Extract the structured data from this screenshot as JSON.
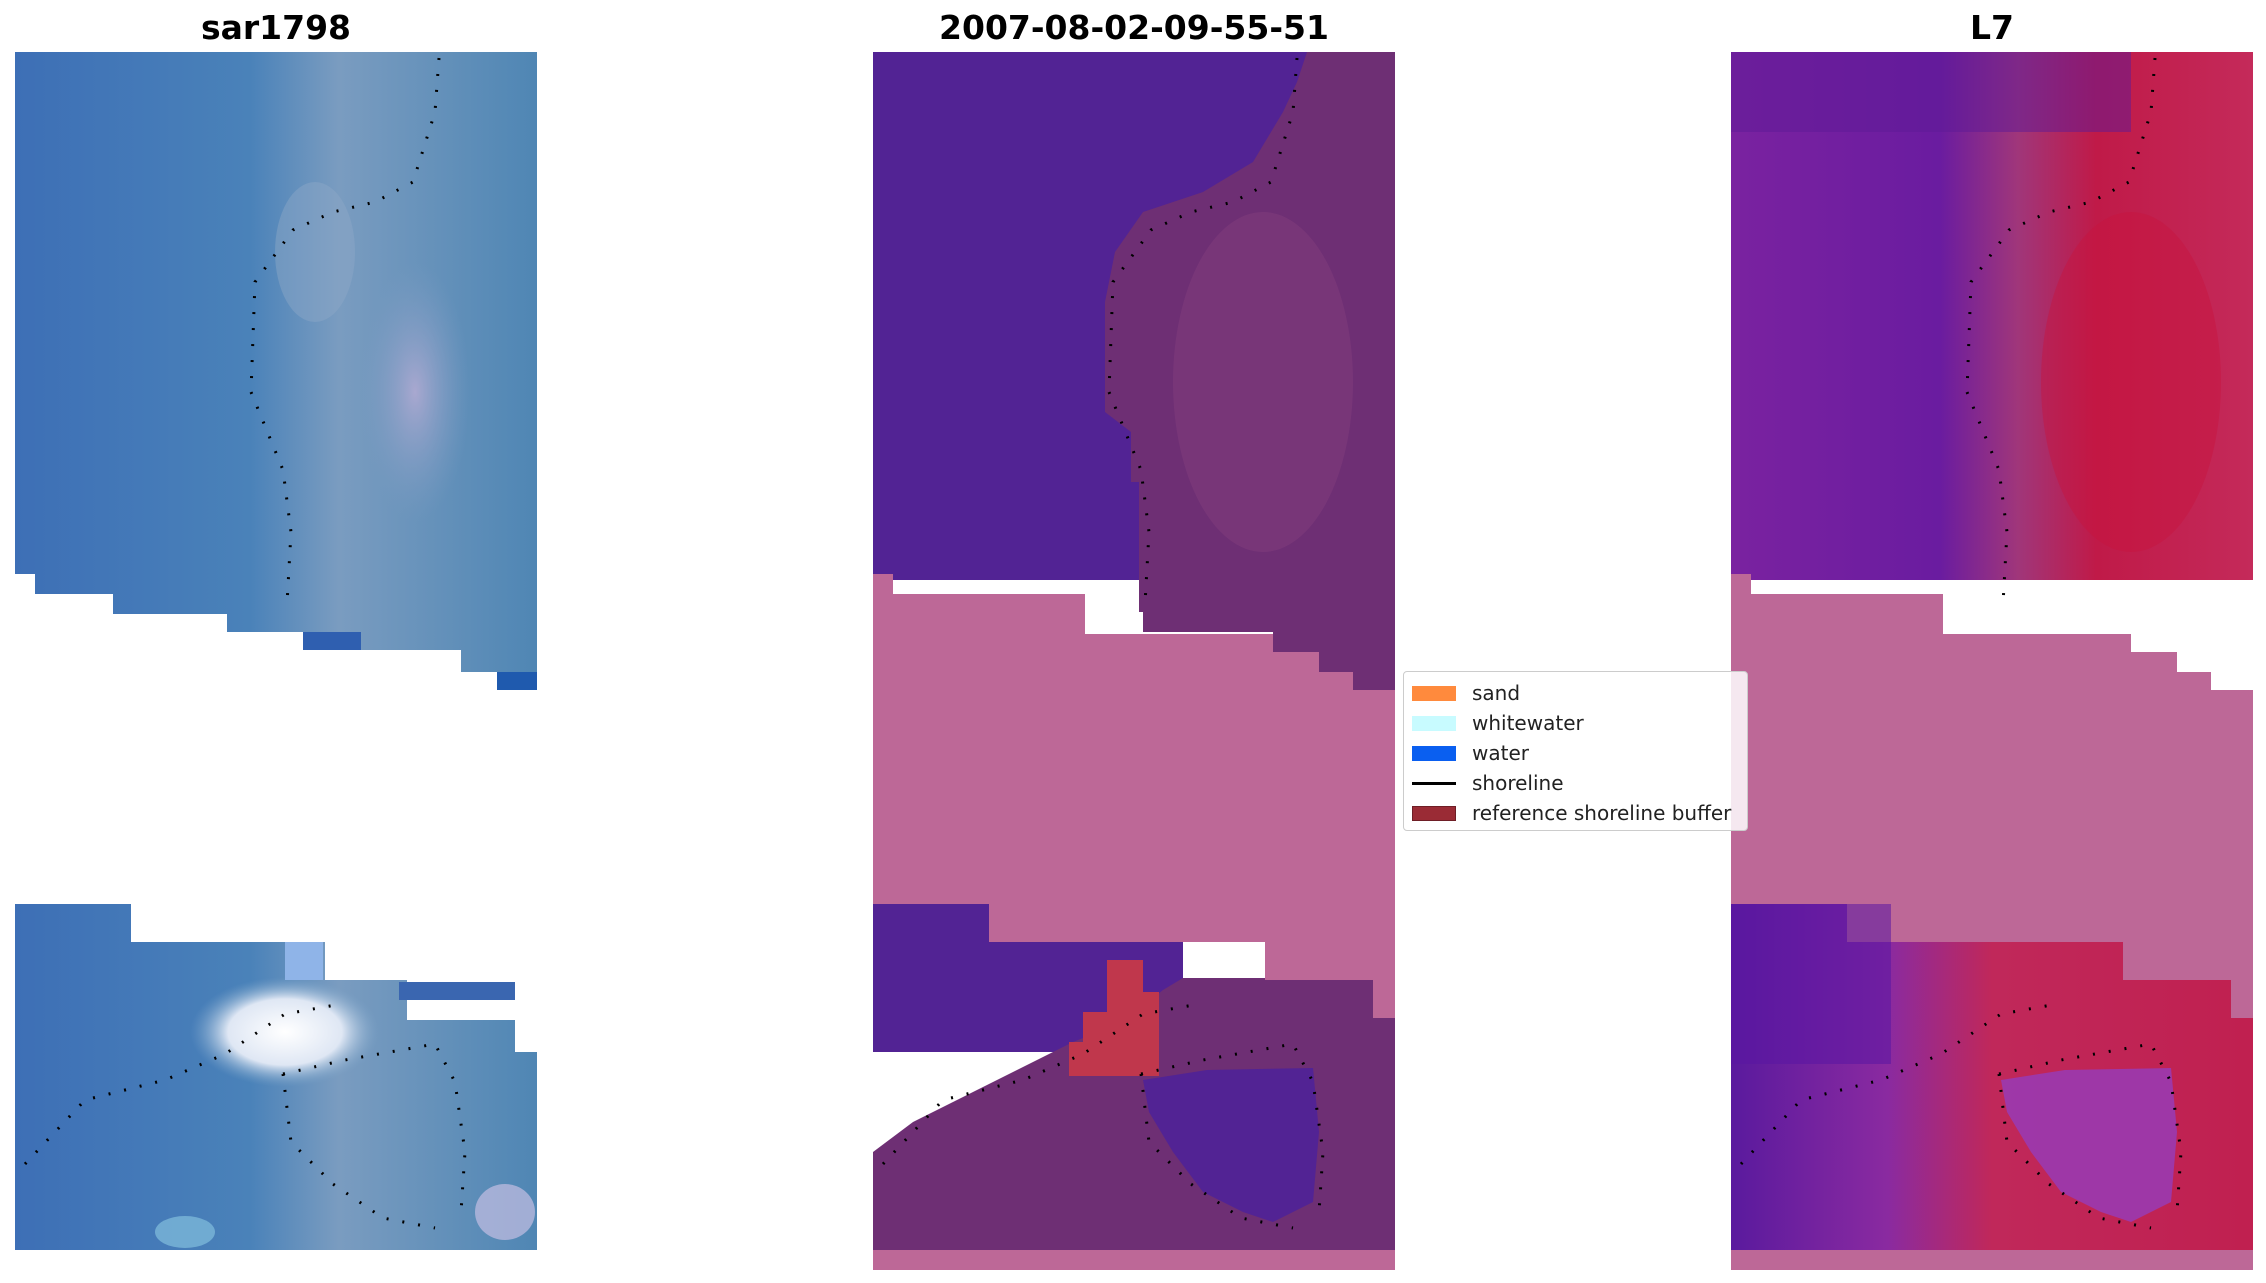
{
  "panels": [
    {
      "title": "sar1798"
    },
    {
      "title": "2007-08-02-09-55-51"
    },
    {
      "title": "L7"
    }
  ],
  "legend": {
    "items": [
      {
        "label": "sand",
        "color": "#ff8a3d",
        "kind": "patch"
      },
      {
        "label": "whitewater",
        "color": "#c8fbff",
        "kind": "patch"
      },
      {
        "label": "water",
        "color": "#0a5ff0",
        "kind": "patch"
      },
      {
        "label": "shoreline",
        "color": "#000000",
        "kind": "line"
      },
      {
        "label": "reference shoreline buffer",
        "color": "#9a2b35",
        "kind": "patch"
      }
    ]
  },
  "colors": {
    "rgb_water": "#3f78b8",
    "rgb_sand": "#6e90b8",
    "rgb_white": "#f4f6ff",
    "class_water": "#522394",
    "class_land": "#6e2f74",
    "class_buffer_band": "#bd6897",
    "class_red": "#c0374c",
    "index_water": "#6a1ca0",
    "index_land": "#c01a48",
    "index_band": "#bd6897"
  }
}
